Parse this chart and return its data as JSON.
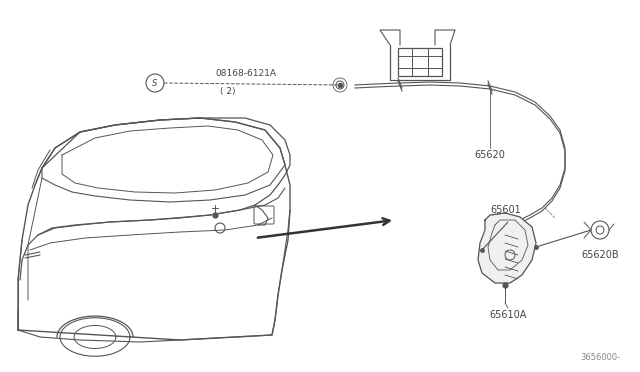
{
  "bg_color": "#ffffff",
  "line_color": "#555555",
  "text_color": "#444444",
  "figsize": [
    6.4,
    3.72
  ],
  "dpi": 100,
  "handle_label": "08168-6121A",
  "handle_label2": "( 2)",
  "cable_label": "65620",
  "lock_label": "65601",
  "spring_label": "65620B",
  "screw_label": "65610A",
  "partnum": "3656000-"
}
